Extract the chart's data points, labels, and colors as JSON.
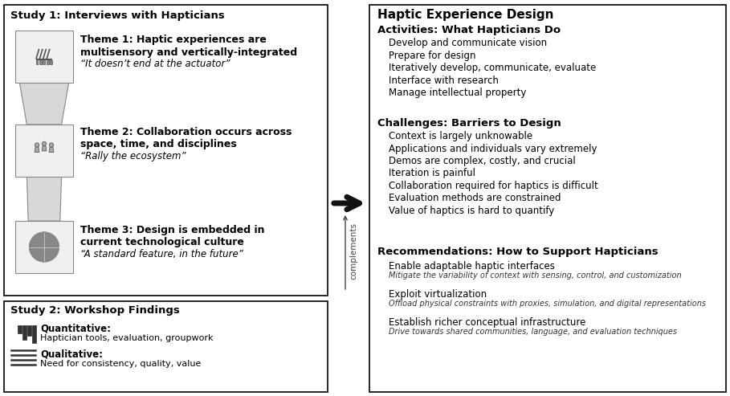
{
  "bg_color": "#ffffff",
  "figsize": [
    9.09,
    4.93
  ],
  "dpi": 100,
  "left_panel": {
    "study1_title": "Study 1: Interviews with Hapticians",
    "themes": [
      {
        "bold": "Theme 1: Haptic experiences are\nmultisensory and vertically-integrated",
        "italic": "“It doesn’t end at the actuator”"
      },
      {
        "bold": "Theme 2: Collaboration occurs across\nspace, time, and disciplines",
        "italic": "“Rally the ecosystem”"
      },
      {
        "bold": "Theme 3: Design is embedded in\ncurrent technological culture",
        "italic": "“A standard feature, in the future”"
      }
    ],
    "study2_title": "Study 2: Workshop Findings",
    "study2_items": [
      {
        "label_bold": "Quantitative:",
        "label_body": "Haptician tools, evaluation, groupwork"
      },
      {
        "label_bold": "Qualitative:",
        "label_body": "Need for consistency, quality, value"
      }
    ]
  },
  "right_panel": {
    "main_title": "Haptic Experience Design",
    "sections": [
      {
        "title": "Activities: What Hapticians Do",
        "items": [
          "Develop and communicate vision",
          "Prepare for design",
          "Iteratively develop, communicate, evaluate",
          "Interface with research",
          "Manage intellectual property"
        ]
      },
      {
        "title": "Challenges: Barriers to Design",
        "items": [
          "Context is largely unknowable",
          "Applications and individuals vary extremely",
          "Demos are complex, costly, and crucial",
          "Iteration is painful",
          "Collaboration required for haptics is difficult",
          "Evaluation methods are constrained",
          "Value of haptics is hard to quantify"
        ]
      },
      {
        "title": "Recommendations: How to Support Hapticians",
        "items": [
          [
            "Enable adaptable haptic interfaces",
            "Mitigate the variability of context with sensing, control, and customization"
          ],
          [
            "Exploit virtualization",
            "Offload physical constraints with proxies, simulation, and digital representations"
          ],
          [
            "Establish richer conceptual infrastructure",
            "Drive towards shared communities, language, and evaluation techniques"
          ]
        ]
      }
    ]
  },
  "arrow_label": "complements"
}
